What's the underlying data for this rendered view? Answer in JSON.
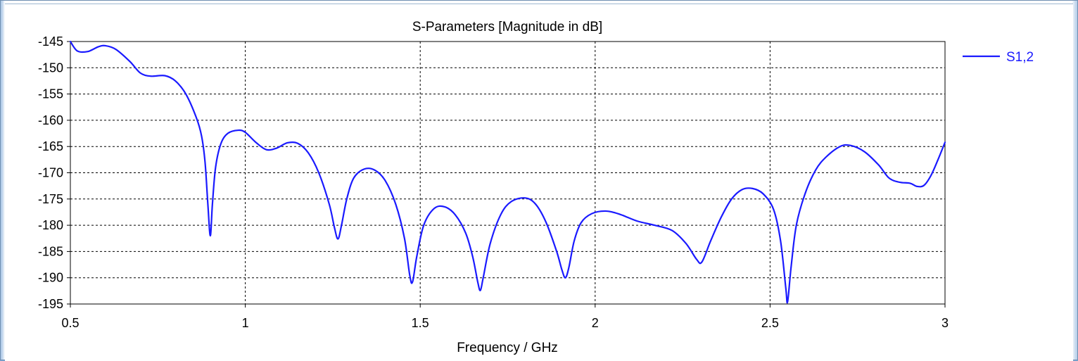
{
  "chart_data": {
    "type": "line",
    "title": "S-Parameters [Magnitude in dB]",
    "xlabel": "Frequency / GHz",
    "ylabel": "",
    "xlim": [
      0.5,
      3
    ],
    "ylim": [
      -195,
      -145
    ],
    "x_ticks": [
      "0.5",
      "1",
      "1.5",
      "2",
      "2.5",
      "3"
    ],
    "y_ticks": [
      "-145",
      "-150",
      "-155",
      "-160",
      "-165",
      "-170",
      "-175",
      "-180",
      "-185",
      "-190",
      "-195"
    ],
    "grid": true,
    "legend_position": "top-right",
    "series": [
      {
        "name": "S1,2",
        "color": "#1a1aff",
        "points": [
          [
            0.5,
            -145.0
          ],
          [
            0.52,
            -146.8
          ],
          [
            0.55,
            -146.9
          ],
          [
            0.58,
            -146.0
          ],
          [
            0.6,
            -145.8
          ],
          [
            0.63,
            -146.5
          ],
          [
            0.67,
            -148.8
          ],
          [
            0.7,
            -151.0
          ],
          [
            0.73,
            -151.6
          ],
          [
            0.77,
            -151.5
          ],
          [
            0.8,
            -152.5
          ],
          [
            0.83,
            -155.0
          ],
          [
            0.86,
            -159.5
          ],
          [
            0.875,
            -163.0
          ],
          [
            0.885,
            -168.0
          ],
          [
            0.893,
            -176.0
          ],
          [
            0.9,
            -182.0
          ],
          [
            0.906,
            -176.0
          ],
          [
            0.915,
            -169.0
          ],
          [
            0.93,
            -164.5
          ],
          [
            0.95,
            -162.5
          ],
          [
            0.98,
            -161.9
          ],
          [
            1.0,
            -162.3
          ],
          [
            1.03,
            -164.2
          ],
          [
            1.06,
            -165.6
          ],
          [
            1.09,
            -165.3
          ],
          [
            1.12,
            -164.3
          ],
          [
            1.15,
            -164.4
          ],
          [
            1.18,
            -166.2
          ],
          [
            1.21,
            -170.0
          ],
          [
            1.24,
            -176.0
          ],
          [
            1.255,
            -180.5
          ],
          [
            1.265,
            -182.6
          ],
          [
            1.275,
            -180.0
          ],
          [
            1.29,
            -175.0
          ],
          [
            1.31,
            -171.0
          ],
          [
            1.34,
            -169.3
          ],
          [
            1.37,
            -169.5
          ],
          [
            1.4,
            -171.5
          ],
          [
            1.43,
            -176.0
          ],
          [
            1.455,
            -182.5
          ],
          [
            1.47,
            -189.5
          ],
          [
            1.478,
            -190.8
          ],
          [
            1.49,
            -186.0
          ],
          [
            1.51,
            -180.0
          ],
          [
            1.54,
            -176.8
          ],
          [
            1.57,
            -176.5
          ],
          [
            1.6,
            -178.0
          ],
          [
            1.63,
            -181.5
          ],
          [
            1.65,
            -186.0
          ],
          [
            1.665,
            -191.0
          ],
          [
            1.672,
            -192.4
          ],
          [
            1.68,
            -190.0
          ],
          [
            1.7,
            -183.5
          ],
          [
            1.73,
            -178.0
          ],
          [
            1.76,
            -175.5
          ],
          [
            1.8,
            -174.8
          ],
          [
            1.83,
            -176.0
          ],
          [
            1.86,
            -179.5
          ],
          [
            1.89,
            -185.0
          ],
          [
            1.905,
            -188.5
          ],
          [
            1.915,
            -190.0
          ],
          [
            1.925,
            -188.0
          ],
          [
            1.94,
            -183.0
          ],
          [
            1.96,
            -179.5
          ],
          [
            1.99,
            -177.8
          ],
          [
            2.03,
            -177.3
          ],
          [
            2.07,
            -177.9
          ],
          [
            2.12,
            -179.2
          ],
          [
            2.17,
            -180.0
          ],
          [
            2.22,
            -181.0
          ],
          [
            2.26,
            -183.5
          ],
          [
            2.29,
            -186.5
          ],
          [
            2.305,
            -187.0
          ],
          [
            2.33,
            -183.0
          ],
          [
            2.36,
            -178.5
          ],
          [
            2.39,
            -175.0
          ],
          [
            2.42,
            -173.2
          ],
          [
            2.45,
            -173.0
          ],
          [
            2.48,
            -174.0
          ],
          [
            2.51,
            -177.0
          ],
          [
            2.53,
            -183.0
          ],
          [
            2.545,
            -192.0
          ],
          [
            2.55,
            -194.6
          ],
          [
            2.56,
            -188.0
          ],
          [
            2.575,
            -180.0
          ],
          [
            2.6,
            -174.0
          ],
          [
            2.63,
            -169.5
          ],
          [
            2.66,
            -167.0
          ],
          [
            2.7,
            -165.0
          ],
          [
            2.73,
            -164.8
          ],
          [
            2.77,
            -166.0
          ],
          [
            2.81,
            -168.5
          ],
          [
            2.84,
            -171.0
          ],
          [
            2.87,
            -171.8
          ],
          [
            2.9,
            -172.0
          ],
          [
            2.92,
            -172.6
          ],
          [
            2.94,
            -172.4
          ],
          [
            2.96,
            -170.5
          ],
          [
            2.98,
            -167.5
          ],
          [
            3.0,
            -164.2
          ]
        ]
      }
    ]
  }
}
